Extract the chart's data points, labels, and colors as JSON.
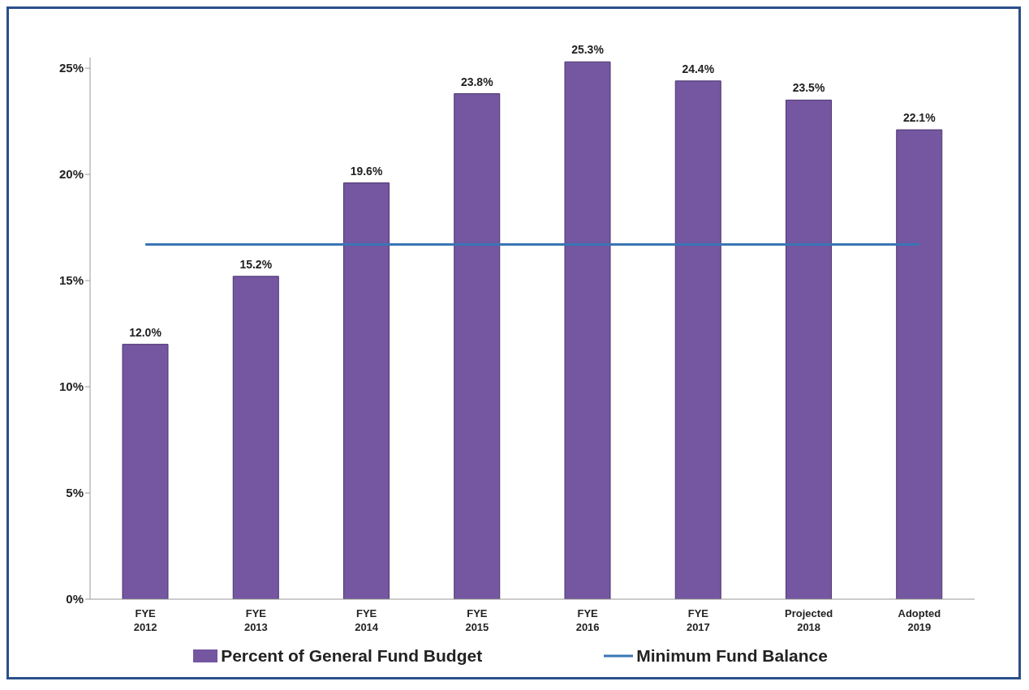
{
  "chart_data": {
    "type": "bar",
    "categories": [
      "FYE 2012",
      "FYE 2013",
      "FYE 2014",
      "FYE 2015",
      "FYE 2016",
      "FYE 2017",
      "Projected 2018",
      "Adopted 2019"
    ],
    "series": [
      {
        "name": "Percent of General Fund Budget",
        "color": "#7556a0",
        "values": [
          12.0,
          15.2,
          19.6,
          23.8,
          25.3,
          24.4,
          23.5,
          22.1
        ],
        "value_labels": [
          "12.0%",
          "15.2%",
          "19.6%",
          "23.8%",
          "25.3%",
          "24.4%",
          "23.5%",
          "22.1%"
        ]
      },
      {
        "name": "Minimum Fund Balance",
        "type": "line",
        "color": "#3a75b5",
        "values": [
          16.7,
          16.7,
          16.7,
          16.7,
          16.7,
          16.7,
          16.7,
          16.7
        ]
      }
    ],
    "ylim": [
      0,
      25.5
    ],
    "yticks": [
      {
        "value": 0,
        "label": "0%"
      },
      {
        "value": 5,
        "label": "5%"
      },
      {
        "value": 10,
        "label": "10%"
      },
      {
        "value": 15,
        "label": "15%"
      },
      {
        "value": 20,
        "label": "20%"
      },
      {
        "value": 25,
        "label": "25%"
      }
    ],
    "grid": false,
    "legend": "bottom",
    "marker": "none",
    "line_style": "solid"
  }
}
